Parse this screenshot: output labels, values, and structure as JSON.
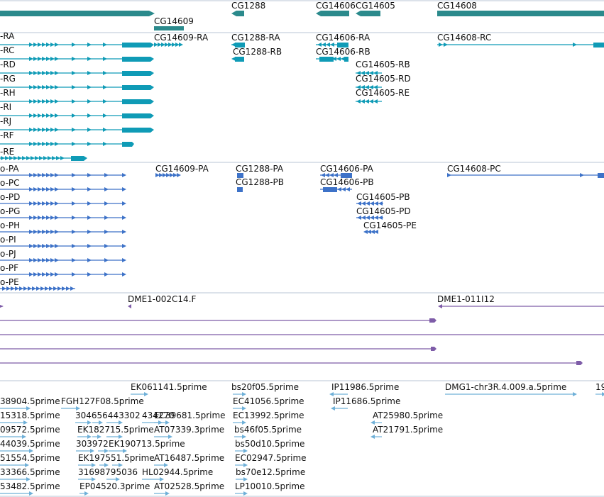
{
  "colors": {
    "gene": "#2b8a8c",
    "mrna": "#0f9bb6",
    "protein": "#3d72c8",
    "clone": "#7e5ca8",
    "est": "#6fb0d8",
    "divider": "#b9c6d6"
  },
  "genes": [
    {
      "label": "CG14609"
    },
    {
      "label": "CG1288"
    },
    {
      "label": "CG14606"
    },
    {
      "label": "CG14605"
    },
    {
      "label": "CG14608"
    }
  ],
  "mrna_labels": [
    "-RA",
    "-RC",
    "-RD",
    "-RG",
    "-RH",
    "-RI",
    "-RJ",
    "-RF",
    "-RE",
    "CG14609-RA",
    "CG1288-RA",
    "CG1288-RB",
    "CG14606-RA",
    "CG14606-RB",
    "CG14605-RB",
    "CG14605-RD",
    "CG14605-RE",
    "CG14608-RC"
  ],
  "protein_labels": [
    "o-PA",
    "o-PC",
    "o-PD",
    "o-PG",
    "o-PH",
    "o-PI",
    "o-PJ",
    "o-PF",
    "o-PE",
    "CG14609-PA",
    "CG1288-PA",
    "CG1288-PB",
    "CG14606-PA",
    "CG14606-PB",
    "CG14605-PB",
    "CG14605-PD",
    "CG14605-PE",
    "CG14608-PC"
  ],
  "clone_labels": [
    "DME1-002C14.F",
    "DME1-011I12"
  ],
  "est_labels": [
    "38904.5prime",
    "FGH127F08.5prime",
    "15318.5prime",
    "09572.5prime",
    "44039.5prime",
    "51554.5prime",
    "33366.5prime",
    "53482.5prime",
    "EK061141.5prime",
    "304656443302",
    "434270",
    "EC39681.5prime",
    "EK182715.5prime",
    "AT07339.3prime",
    "303972",
    "EK190713.5prime",
    "EK197551.5prime",
    "AT16487.5prime",
    "31698795036",
    "HL02944.5prime",
    "EP04520.3prime",
    "AT02528.5prime",
    "bs20f05.5prime",
    "EC41056.5prime",
    "EC13992.5prime",
    "bs46f05.5prime",
    "bs50d10.5prime",
    "EC02947.5prime",
    "bs70e12.5prime",
    "LP10010.5prime",
    "IP11986.5prime",
    "IP11686.5prime",
    "AT25980.5prime",
    "AT21791.5prime",
    "DMG1-chr3R.4.009.a.5prime",
    "19"
  ]
}
